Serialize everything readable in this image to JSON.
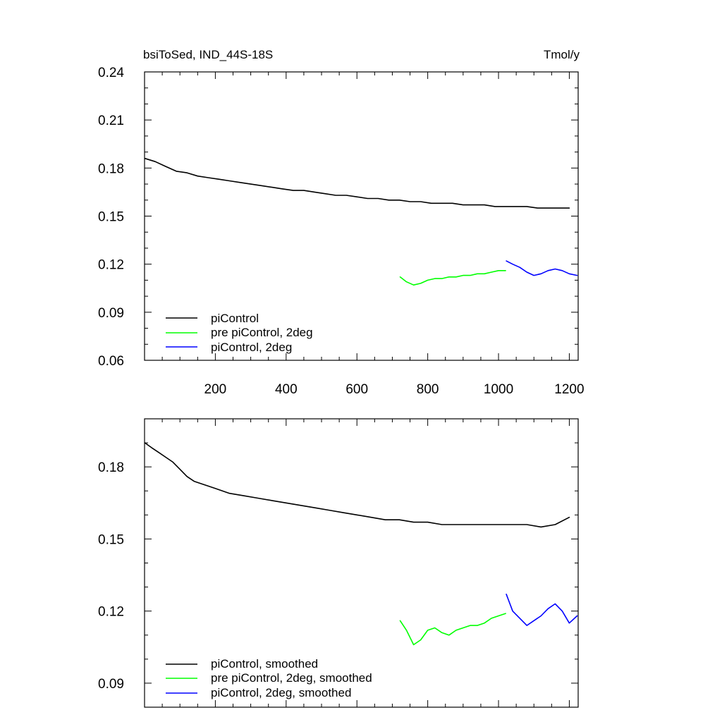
{
  "chart_data": [
    {
      "type": "line",
      "title": "bsiToSed, IND_44S-18S",
      "units": "Tmol/y",
      "xlim": [
        0,
        1225
      ],
      "ylim": [
        0.06,
        0.24
      ],
      "xticks": [
        200,
        400,
        600,
        800,
        1000,
        1200
      ],
      "xtick_labels": [
        "200",
        "400",
        "600",
        "800",
        "1000",
        "1200"
      ],
      "yticks": [
        0.06,
        0.09,
        0.12,
        0.15,
        0.18,
        0.21,
        0.24
      ],
      "ytick_labels": [
        "0.06",
        "0.09",
        "0.12",
        "0.15",
        "0.18",
        "0.21",
        "0.24"
      ],
      "legend_position": "bottom-left",
      "series": [
        {
          "name": "piControl",
          "color": "#000000",
          "x": [
            1,
            30,
            60,
            90,
            120,
            150,
            180,
            210,
            240,
            270,
            300,
            330,
            360,
            390,
            420,
            450,
            480,
            510,
            540,
            570,
            600,
            630,
            660,
            690,
            720,
            750,
            780,
            810,
            840,
            870,
            900,
            930,
            960,
            990,
            1020,
            1050,
            1080,
            1110,
            1140,
            1170,
            1200
          ],
          "y": [
            0.186,
            0.184,
            0.181,
            0.178,
            0.177,
            0.175,
            0.174,
            0.173,
            0.172,
            0.171,
            0.17,
            0.169,
            0.168,
            0.167,
            0.166,
            0.166,
            0.165,
            0.164,
            0.163,
            0.163,
            0.162,
            0.161,
            0.161,
            0.16,
            0.16,
            0.159,
            0.159,
            0.158,
            0.158,
            0.158,
            0.157,
            0.157,
            0.157,
            0.156,
            0.156,
            0.156,
            0.156,
            0.155,
            0.155,
            0.155,
            0.155
          ]
        },
        {
          "name": "pre piControl, 2deg",
          "color": "#00ff00",
          "x": [
            722,
            740,
            760,
            780,
            800,
            820,
            840,
            860,
            880,
            900,
            920,
            940,
            960,
            980,
            1000,
            1020
          ],
          "y": [
            0.112,
            0.109,
            0.107,
            0.108,
            0.11,
            0.111,
            0.111,
            0.112,
            0.112,
            0.113,
            0.113,
            0.114,
            0.114,
            0.115,
            0.116,
            0.116
          ]
        },
        {
          "name": "piControl, 2deg",
          "color": "#0000ff",
          "x": [
            1022,
            1040,
            1060,
            1080,
            1100,
            1120,
            1140,
            1160,
            1180,
            1200,
            1222
          ],
          "y": [
            0.122,
            0.12,
            0.118,
            0.115,
            0.113,
            0.114,
            0.116,
            0.117,
            0.116,
            0.114,
            0.113
          ]
        }
      ]
    },
    {
      "type": "line",
      "xlim": [
        0,
        1225
      ],
      "ylim": [
        0.08,
        0.2
      ],
      "xticks": [
        200,
        400,
        600,
        800,
        1000,
        1200
      ],
      "yticks": [
        0.09,
        0.12,
        0.15,
        0.18
      ],
      "ytick_labels": [
        "0.09",
        "0.12",
        "0.15",
        "0.18"
      ],
      "legend_position": "bottom-left",
      "series": [
        {
          "name": "piControl, smoothed",
          "color": "#000000",
          "x": [
            1,
            20,
            40,
            60,
            80,
            100,
            120,
            140,
            160,
            180,
            200,
            240,
            280,
            320,
            360,
            400,
            440,
            480,
            520,
            560,
            600,
            640,
            680,
            720,
            760,
            800,
            840,
            880,
            920,
            960,
            1000,
            1040,
            1080,
            1120,
            1160,
            1200
          ],
          "y": [
            0.19,
            0.188,
            0.186,
            0.184,
            0.182,
            0.179,
            0.176,
            0.174,
            0.173,
            0.172,
            0.171,
            0.169,
            0.168,
            0.167,
            0.166,
            0.165,
            0.164,
            0.163,
            0.162,
            0.161,
            0.16,
            0.159,
            0.158,
            0.158,
            0.157,
            0.157,
            0.156,
            0.156,
            0.156,
            0.156,
            0.156,
            0.156,
            0.156,
            0.155,
            0.156,
            0.159
          ]
        },
        {
          "name": "pre piControl, 2deg, smoothed",
          "color": "#00ff00",
          "x": [
            722,
            740,
            760,
            780,
            800,
            820,
            840,
            860,
            880,
            900,
            920,
            940,
            960,
            980,
            1000,
            1020
          ],
          "y": [
            0.116,
            0.112,
            0.106,
            0.108,
            0.112,
            0.113,
            0.111,
            0.11,
            0.112,
            0.113,
            0.114,
            0.114,
            0.115,
            0.117,
            0.118,
            0.119
          ]
        },
        {
          "name": "piControl, 2deg, smoothed",
          "color": "#0000ff",
          "x": [
            1022,
            1040,
            1060,
            1080,
            1100,
            1120,
            1140,
            1160,
            1180,
            1200,
            1222
          ],
          "y": [
            0.127,
            0.12,
            0.117,
            0.114,
            0.116,
            0.118,
            0.121,
            0.123,
            0.12,
            0.115,
            0.118
          ]
        }
      ]
    }
  ]
}
